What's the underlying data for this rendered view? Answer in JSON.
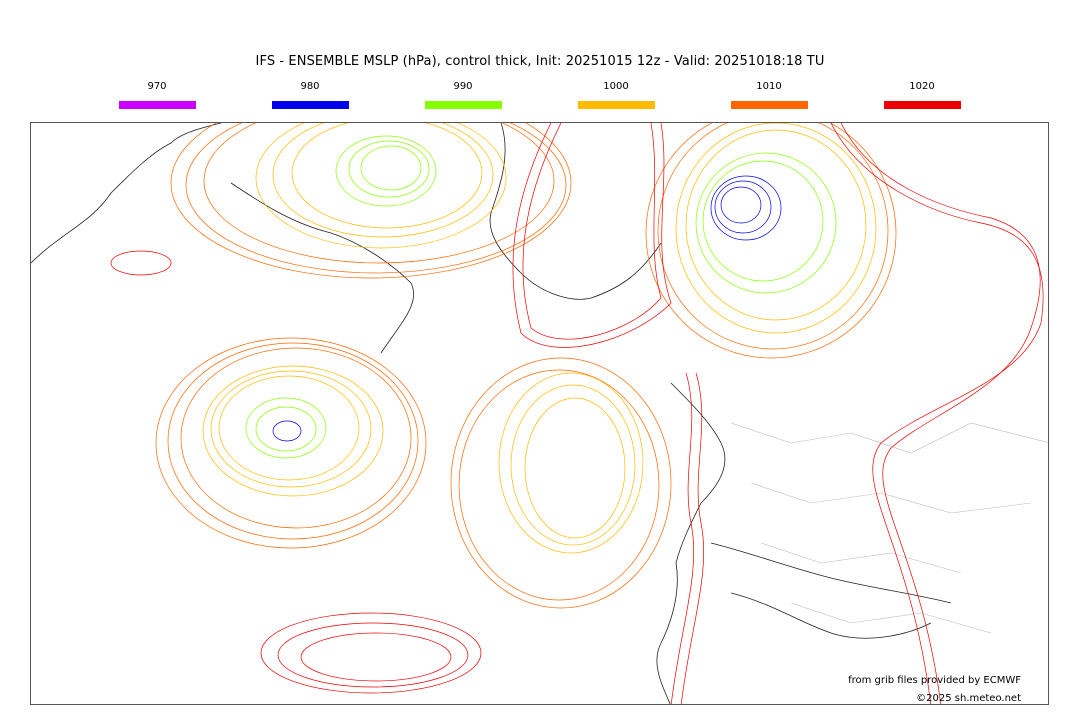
{
  "title": "IFS - ENSEMBLE MSLP (hPa), control thick, Init: 20251015 12z - Valid: 20251018:18 TU",
  "legend": [
    {
      "label": "970",
      "color": "#cc00ff"
    },
    {
      "label": "980",
      "color": "#0000ee"
    },
    {
      "label": "990",
      "color": "#88ff00"
    },
    {
      "label": "1000",
      "color": "#ffbb00"
    },
    {
      "label": "1010",
      "color": "#ff6600"
    },
    {
      "label": "1020",
      "color": "#ee0000"
    }
  ],
  "credits": {
    "source": "from grib files provided by ECMWF",
    "copyright": "©2025 sh.meteo.net"
  }
}
